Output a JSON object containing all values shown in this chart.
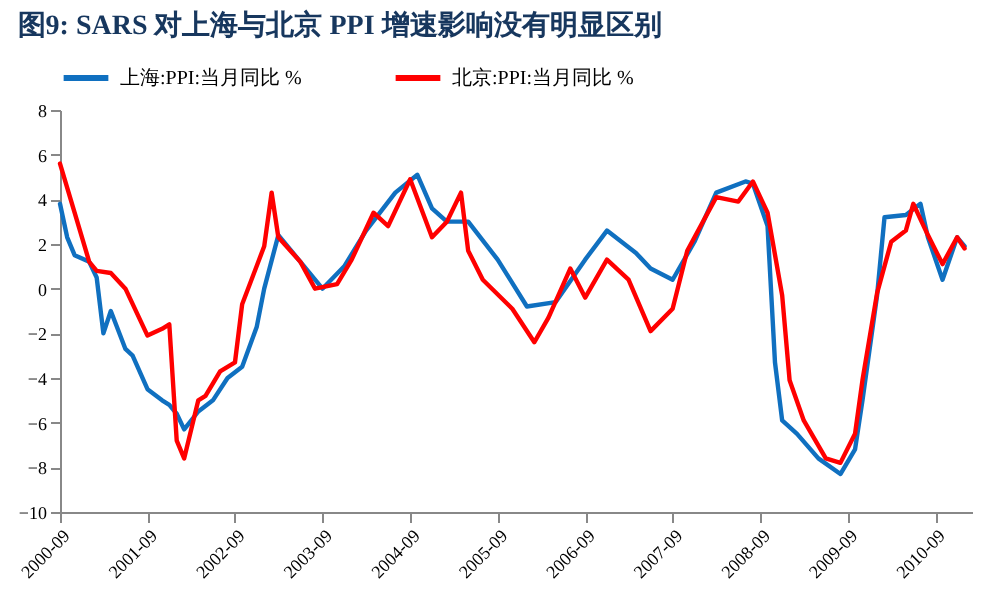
{
  "chart_data": {
    "type": "line",
    "title": "图9:  SARS 对上海与北京 PPI 增速影响没有明显区别",
    "legend": "top",
    "ylim": [
      -10,
      8
    ],
    "yticks": [
      -10,
      -8,
      -6,
      -4,
      -2,
      0,
      2,
      4,
      6,
      8
    ],
    "xlim": [
      "2000-09",
      "2011-02"
    ],
    "xticks": [
      "2000-09",
      "2001-09",
      "2002-09",
      "2003-09",
      "2004-09",
      "2005-09",
      "2006-09",
      "2007-09",
      "2008-09",
      "2009-09",
      "2010-09"
    ],
    "grid": false,
    "series": [
      {
        "name": "上海:PPI:当月同比 %",
        "color": "#1070c0",
        "x": [
          "2000-09",
          "2000-10",
          "2000-11",
          "2001-01",
          "2001-02",
          "2001-03",
          "2001-04",
          "2001-06",
          "2001-07",
          "2001-09",
          "2001-11",
          "2001-12",
          "2002-01",
          "2002-02",
          "2002-04",
          "2002-06",
          "2002-08",
          "2002-10",
          "2002-12",
          "2003-01",
          "2003-03",
          "2003-09",
          "2003-12",
          "2004-03",
          "2004-07",
          "2004-10",
          "2004-12",
          "2005-02",
          "2005-05",
          "2005-09",
          "2006-01",
          "2006-05",
          "2006-09",
          "2006-12",
          "2007-04",
          "2007-06",
          "2007-09",
          "2007-12",
          "2008-03",
          "2008-07",
          "2008-08",
          "2008-10",
          "2008-11",
          "2008-12",
          "2009-02",
          "2009-05",
          "2009-08",
          "2009-10",
          "2009-11",
          "2010-01",
          "2010-02",
          "2010-05",
          "2010-07",
          "2010-08",
          "2010-10",
          "2010-12",
          "2011-01"
        ],
        "values": [
          3.8,
          2.3,
          1.5,
          1.2,
          0.5,
          -2,
          -1,
          -2.7,
          -3,
          -4.5,
          -5,
          -5.2,
          -5.6,
          -6.3,
          -5.5,
          -5,
          -4,
          -3.5,
          -1.7,
          0,
          2.4,
          0,
          1,
          2.6,
          4.3,
          5.1,
          3.6,
          3,
          3,
          1.3,
          -0.8,
          -0.6,
          1.3,
          2.6,
          1.6,
          0.9,
          0.4,
          2.1,
          4.3,
          4.8,
          4.7,
          2.8,
          -3.3,
          -5.9,
          -6.5,
          -7.6,
          -8.3,
          -7.2,
          -5,
          -0.3,
          3.2,
          3.3,
          3.8,
          2.3,
          0.4,
          2.3,
          1.9
        ]
      },
      {
        "name": "北京:PPI:当月同比 %",
        "color": "#ff0000",
        "x": [
          "2000-09",
          "2000-11",
          "2001-01",
          "2001-02",
          "2001-04",
          "2001-06",
          "2001-09",
          "2001-11",
          "2001-12",
          "2002-01",
          "2002-02",
          "2002-04",
          "2002-05",
          "2002-07",
          "2002-09",
          "2002-10",
          "2003-01",
          "2003-02",
          "2003-03",
          "2003-06",
          "2003-08",
          "2003-11",
          "2004-01",
          "2004-04",
          "2004-06",
          "2004-09",
          "2004-12",
          "2005-02",
          "2005-04",
          "2005-05",
          "2005-07",
          "2005-11",
          "2006-02",
          "2006-04",
          "2006-07",
          "2006-09",
          "2006-12",
          "2007-03",
          "2007-06",
          "2007-09",
          "2007-11",
          "2008-03",
          "2008-06",
          "2008-08",
          "2008-10",
          "2008-12",
          "2009-01",
          "2009-03",
          "2009-06",
          "2009-08",
          "2009-10",
          "2009-11",
          "2010-01",
          "2010-03",
          "2010-05",
          "2010-06",
          "2010-08",
          "2010-10",
          "2010-12",
          "2011-01"
        ],
        "values": [
          5.6,
          3.4,
          1.2,
          0.8,
          0.7,
          0,
          -2.1,
          -1.8,
          -1.6,
          -6.8,
          -7.6,
          -5,
          -4.8,
          -3.7,
          -3.3,
          -0.7,
          1.9,
          4.3,
          2.3,
          1.2,
          0,
          0.2,
          1.3,
          3.4,
          2.8,
          4.9,
          2.3,
          3,
          4.3,
          1.7,
          0.4,
          -0.9,
          -2.4,
          -1.3,
          0.9,
          -0.4,
          1.3,
          0.4,
          -1.9,
          -0.9,
          1.7,
          4.1,
          3.9,
          4.8,
          3.4,
          -0.3,
          -4.1,
          -5.9,
          -7.6,
          -7.8,
          -6.5,
          -4.1,
          -0.2,
          2.1,
          2.6,
          3.8,
          2.4,
          1.1,
          2.3,
          1.8
        ]
      }
    ]
  }
}
